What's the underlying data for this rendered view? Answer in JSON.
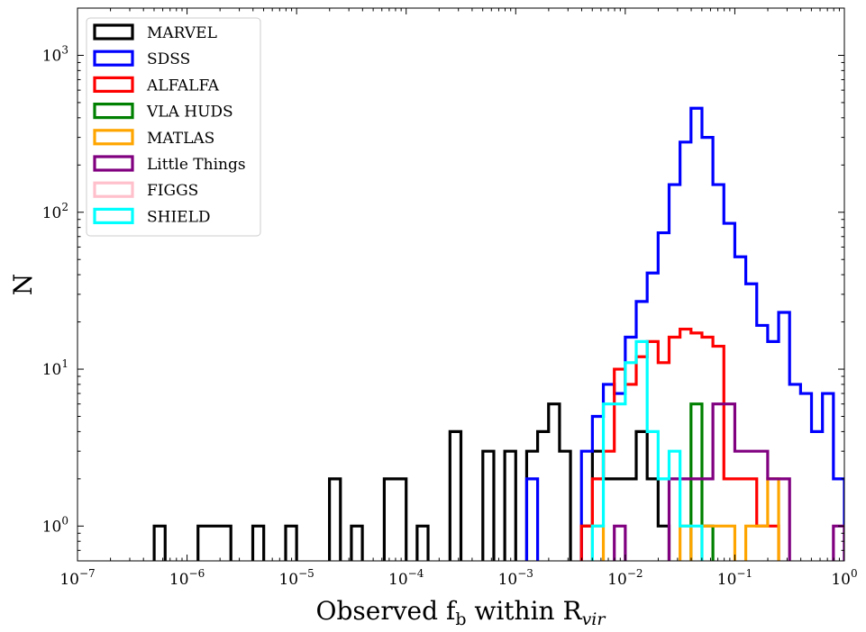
{
  "chart_data": {
    "type": "histogram-step",
    "xlabel_main": "Observed f",
    "xlabel_sub1": "b",
    "xlabel_mid": " within R",
    "xlabel_sub2": "vir",
    "ylabel": "N",
    "xscale": "log",
    "yscale": "log",
    "xlim": [
      1e-07,
      1
    ],
    "ylim": [
      0.6,
      2000
    ],
    "grid": false,
    "legend_position": "upper-left",
    "x_ticks": [
      {
        "value": 1e-07,
        "base": "10",
        "exp": "−7"
      },
      {
        "value": 1e-06,
        "base": "10",
        "exp": "−6"
      },
      {
        "value": 1e-05,
        "base": "10",
        "exp": "−5"
      },
      {
        "value": 0.0001,
        "base": "10",
        "exp": "−4"
      },
      {
        "value": 0.001,
        "base": "10",
        "exp": "−3"
      },
      {
        "value": 0.01,
        "base": "10",
        "exp": "−2"
      },
      {
        "value": 0.1,
        "base": "10",
        "exp": "−1"
      },
      {
        "value": 1,
        "base": "10",
        "exp": "0"
      }
    ],
    "y_ticks": [
      {
        "value": 1,
        "base": "10",
        "exp": "0"
      },
      {
        "value": 10,
        "base": "10",
        "exp": "1"
      },
      {
        "value": 100,
        "base": "10",
        "exp": "2"
      },
      {
        "value": 1000,
        "base": "10",
        "exp": "3"
      }
    ],
    "bin_edges_log10": [
      -7,
      -6.9,
      -6.8,
      -6.7,
      -6.6,
      -6.5,
      -6.4,
      -6.3,
      -6.2,
      -6.1,
      -6,
      -5.9,
      -5.8,
      -5.7,
      -5.6,
      -5.5,
      -5.4,
      -5.3,
      -5.2,
      -5.1,
      -5,
      -4.9,
      -4.8,
      -4.7,
      -4.6,
      -4.5,
      -4.4,
      -4.3,
      -4.2,
      -4.1,
      -4,
      -3.9,
      -3.8,
      -3.7,
      -3.6,
      -3.5,
      -3.4,
      -3.3,
      -3.2,
      -3.1,
      -3,
      -2.9,
      -2.8,
      -2.7,
      -2.6,
      -2.5,
      -2.4,
      -2.3,
      -2.2,
      -2.1,
      -2,
      -1.9,
      -1.8,
      -1.7,
      -1.6,
      -1.5,
      -1.4,
      -1.3,
      -1.2,
      -1.1,
      -1,
      -0.9,
      -0.8,
      -0.7,
      -0.6,
      -0.5,
      -0.4,
      -0.3,
      -0.2,
      -0.1,
      0
    ],
    "series": [
      {
        "name": "MARVEL",
        "color": "#000000",
        "counts": [
          0,
          0,
          0,
          0,
          0,
          0,
          0,
          1,
          0,
          0,
          0,
          1,
          1,
          1,
          0,
          0,
          1,
          0,
          0,
          1,
          0,
          0,
          0,
          2,
          0,
          1,
          0,
          0,
          2,
          2,
          0,
          1,
          0,
          0,
          4,
          0,
          0,
          3,
          0,
          3,
          0,
          3,
          4,
          6,
          3,
          0,
          1,
          3,
          2,
          2,
          2,
          4,
          2,
          1,
          0,
          0,
          0,
          0,
          0,
          0,
          0,
          0,
          0,
          0,
          0,
          0,
          0,
          0,
          0,
          0
        ]
      },
      {
        "name": "SDSS",
        "color": "#0000ff",
        "counts": [
          0,
          0,
          0,
          0,
          0,
          0,
          0,
          0,
          0,
          0,
          0,
          0,
          0,
          0,
          0,
          0,
          0,
          0,
          0,
          0,
          0,
          0,
          0,
          0,
          0,
          0,
          0,
          0,
          0,
          0,
          0,
          0,
          0,
          0,
          0,
          0,
          0,
          0,
          0,
          0,
          0,
          2,
          0,
          0,
          0,
          0,
          3,
          5,
          8,
          7,
          16,
          27,
          41,
          74,
          150,
          280,
          460,
          300,
          150,
          85,
          52,
          35,
          19,
          15,
          23,
          8,
          7,
          4,
          7,
          2
        ]
      },
      {
        "name": "ALFALFA",
        "color": "#ff0000",
        "counts": [
          0,
          0,
          0,
          0,
          0,
          0,
          0,
          0,
          0,
          0,
          0,
          0,
          0,
          0,
          0,
          0,
          0,
          0,
          0,
          0,
          0,
          0,
          0,
          0,
          0,
          0,
          0,
          0,
          0,
          0,
          0,
          0,
          0,
          0,
          0,
          0,
          0,
          0,
          0,
          0,
          0,
          0,
          0,
          0,
          0,
          0,
          1,
          2,
          3,
          10,
          8,
          12,
          15,
          11,
          16,
          18,
          17,
          16,
          14,
          2,
          2,
          2,
          1,
          1,
          0,
          0,
          0,
          0,
          0,
          0
        ]
      },
      {
        "name": "VLA HUDS",
        "color": "#008000",
        "counts": [
          0,
          0,
          0,
          0,
          0,
          0,
          0,
          0,
          0,
          0,
          0,
          0,
          0,
          0,
          0,
          0,
          0,
          0,
          0,
          0,
          0,
          0,
          0,
          0,
          0,
          0,
          0,
          0,
          0,
          0,
          0,
          0,
          0,
          0,
          0,
          0,
          0,
          0,
          0,
          0,
          0,
          0,
          0,
          0,
          0,
          0,
          0,
          0,
          0,
          0,
          0,
          0,
          0,
          0,
          0,
          0,
          6,
          1,
          0,
          0,
          0,
          0,
          0,
          0,
          0,
          0,
          0,
          0,
          0,
          0
        ]
      },
      {
        "name": "MATLAS",
        "color": "#ffa500",
        "counts": [
          0,
          0,
          0,
          0,
          0,
          0,
          0,
          0,
          0,
          0,
          0,
          0,
          0,
          0,
          0,
          0,
          0,
          0,
          0,
          0,
          0,
          0,
          0,
          0,
          0,
          0,
          0,
          0,
          0,
          0,
          0,
          0,
          0,
          0,
          0,
          0,
          0,
          0,
          0,
          0,
          0,
          0,
          0,
          0,
          0,
          0,
          0,
          1,
          0,
          0,
          0,
          0,
          0,
          0,
          0,
          1,
          0,
          1,
          1,
          1,
          0,
          1,
          1,
          2,
          0,
          0,
          0,
          0,
          0,
          0
        ]
      },
      {
        "name": "Little Things",
        "color": "#800080",
        "counts": [
          0,
          0,
          0,
          0,
          0,
          0,
          0,
          0,
          0,
          0,
          0,
          0,
          0,
          0,
          0,
          0,
          0,
          0,
          0,
          0,
          0,
          0,
          0,
          0,
          0,
          0,
          0,
          0,
          0,
          0,
          0,
          0,
          0,
          0,
          0,
          0,
          0,
          0,
          0,
          0,
          0,
          0,
          0,
          0,
          0,
          0,
          0,
          0,
          0,
          1,
          0,
          0,
          0,
          0,
          2,
          2,
          2,
          2,
          6,
          6,
          3,
          3,
          3,
          2,
          2,
          0,
          0,
          0,
          0,
          1
        ]
      },
      {
        "name": "FIGGS",
        "color": "#ffc0cb",
        "counts": [
          0,
          0,
          0,
          0,
          0,
          0,
          0,
          0,
          0,
          0,
          0,
          0,
          0,
          0,
          0,
          0,
          0,
          0,
          0,
          0,
          0,
          0,
          0,
          0,
          0,
          0,
          0,
          0,
          0,
          0,
          0,
          0,
          0,
          0,
          0,
          0,
          0,
          0,
          0,
          0,
          0,
          0,
          0,
          0,
          0,
          0,
          0,
          0,
          0,
          0,
          0,
          0,
          0,
          0,
          0,
          0,
          0,
          0,
          0,
          0,
          0,
          0,
          0,
          0,
          0,
          0,
          0,
          0,
          0,
          0
        ]
      },
      {
        "name": "SHIELD",
        "color": "#00ffff",
        "counts": [
          0,
          0,
          0,
          0,
          0,
          0,
          0,
          0,
          0,
          0,
          0,
          0,
          0,
          0,
          0,
          0,
          0,
          0,
          0,
          0,
          0,
          0,
          0,
          0,
          0,
          0,
          0,
          0,
          0,
          0,
          0,
          0,
          0,
          0,
          0,
          0,
          0,
          0,
          0,
          0,
          0,
          0,
          0,
          0,
          0,
          0,
          0,
          1,
          6,
          6,
          11,
          15,
          4,
          2,
          3,
          1,
          1,
          0,
          0,
          0,
          0,
          0,
          0,
          0,
          0,
          0,
          0,
          0,
          0,
          0
        ]
      }
    ]
  }
}
